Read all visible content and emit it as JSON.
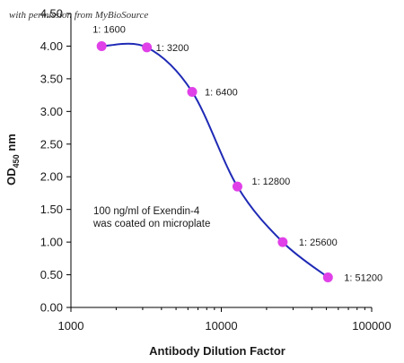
{
  "watermark": "with permission from MyBioSource",
  "chart_data": {
    "type": "line",
    "xscale": "log",
    "xlim": [
      1000,
      100000
    ],
    "ylim": [
      0,
      4.5
    ],
    "xlabel": "Antibody Dilution Factor",
    "ylabel_main": "OD",
    "ylabel_sub": "450",
    "ylabel_unit": " nm",
    "xticks": [
      {
        "value": 1000,
        "label": "1000"
      },
      {
        "value": 10000,
        "label": "10000"
      },
      {
        "value": 100000,
        "label": "100000"
      }
    ],
    "yticks": [
      {
        "value": 0,
        "label": "0.00"
      },
      {
        "value": 0.5,
        "label": "0.50"
      },
      {
        "value": 1.0,
        "label": "1.00"
      },
      {
        "value": 1.5,
        "label": "1.50"
      },
      {
        "value": 2.0,
        "label": "2.00"
      },
      {
        "value": 2.5,
        "label": "2.50"
      },
      {
        "value": 3.0,
        "label": "3.00"
      },
      {
        "value": 3.5,
        "label": "3.50"
      },
      {
        "value": 4.0,
        "label": "4.00"
      },
      {
        "value": 4.5,
        "label": "4.50"
      }
    ],
    "series": [
      {
        "line_color": "#1f2ab5",
        "marker_color": "#e040e8",
        "points": [
          {
            "x": 1600,
            "y": 4.0,
            "label": "1: 1600"
          },
          {
            "x": 3200,
            "y": 3.98,
            "label": "1: 3200"
          },
          {
            "x": 6400,
            "y": 3.3,
            "label": "1: 6400"
          },
          {
            "x": 12800,
            "y": 1.85,
            "label": "1: 12800"
          },
          {
            "x": 25600,
            "y": 1.0,
            "label": "1: 25600"
          },
          {
            "x": 51200,
            "y": 0.46,
            "label": "1: 51200"
          }
        ]
      }
    ],
    "annotation": [
      "100 ng/ml of Exendin-4",
      "was coated on microplate"
    ],
    "grid": false,
    "legend": "none"
  }
}
